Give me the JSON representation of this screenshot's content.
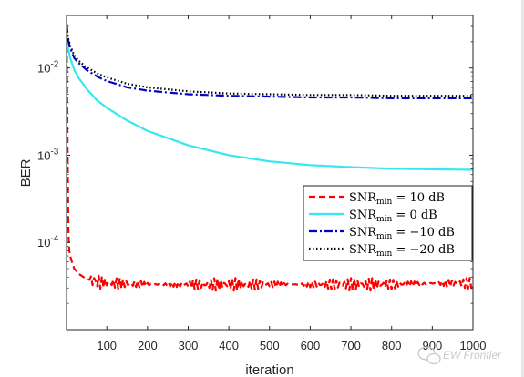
{
  "chart_data": {
    "type": "line",
    "xlabel": "iteration",
    "ylabel": "BER",
    "xlim": [
      1,
      1000
    ],
    "ylim": [
      1e-05,
      0.04
    ],
    "yscale": "log",
    "grid": false,
    "legend_position": "bottom-right",
    "x_ticks": [
      "100",
      "200",
      "300",
      "400",
      "500",
      "600",
      "700",
      "800",
      "900",
      "1000"
    ],
    "y_ticks": [
      {
        "value": 0.01,
        "base": "10",
        "exp": "-2"
      },
      {
        "value": 0.001,
        "base": "10",
        "exp": "-3"
      },
      {
        "value": 0.0001,
        "base": "10",
        "exp": "-4"
      }
    ],
    "series": [
      {
        "legend": {
          "lhs": "SNR",
          "sub": "min",
          "rhs": "= 10 dB"
        },
        "color": "#ff0000",
        "dash": "dash",
        "x": [
          1,
          2,
          3,
          4,
          5,
          6,
          8,
          10,
          15,
          20,
          30,
          50,
          80,
          120,
          200,
          300,
          400,
          500,
          600,
          700,
          800,
          900,
          1000
        ],
        "y": [
          0.03,
          0.012,
          0.003,
          0.0008,
          0.00025,
          0.00012,
          8e-05,
          7e-05,
          5.8e-05,
          5e-05,
          4.4e-05,
          3.8e-05,
          3.5e-05,
          3.4e-05,
          3.3e-05,
          3.3e-05,
          3.3e-05,
          3.3e-05,
          3.3e-05,
          3.3e-05,
          3.3e-05,
          3.4e-05,
          3.4e-05
        ]
      },
      {
        "legend": {
          "lhs": "SNR",
          "sub": "min",
          "rhs": "= 0 dB"
        },
        "color": "#33e8f0",
        "dash": "solid",
        "x": [
          1,
          5,
          10,
          20,
          30,
          50,
          75,
          100,
          150,
          200,
          300,
          400,
          500,
          600,
          700,
          800,
          900,
          1000
        ],
        "y": [
          0.03,
          0.017,
          0.013,
          0.0095,
          0.0078,
          0.0058,
          0.0043,
          0.0035,
          0.0025,
          0.0019,
          0.0013,
          0.001,
          0.00085,
          0.00077,
          0.00073,
          0.0007,
          0.00069,
          0.00068
        ]
      },
      {
        "legend": {
          "lhs": "SNR",
          "sub": "min",
          "rhs": "= −10 dB"
        },
        "color": "#0000cc",
        "dash": "dashdot",
        "x": [
          1,
          5,
          10,
          20,
          30,
          50,
          80,
          100,
          150,
          200,
          300,
          400,
          500,
          600,
          700,
          800,
          900,
          1000
        ],
        "y": [
          0.032,
          0.021,
          0.017,
          0.013,
          0.0115,
          0.0095,
          0.0078,
          0.0071,
          0.006,
          0.0055,
          0.005,
          0.0048,
          0.0047,
          0.0046,
          0.0046,
          0.0045,
          0.0045,
          0.0045
        ]
      },
      {
        "legend": {
          "lhs": "SNR",
          "sub": "min",
          "rhs": "= −20 dB"
        },
        "color": "#000000",
        "dash": "dot",
        "x": [
          1,
          5,
          10,
          20,
          30,
          50,
          80,
          100,
          150,
          200,
          300,
          400,
          500,
          600,
          700,
          800,
          900,
          1000
        ],
        "y": [
          0.032,
          0.022,
          0.018,
          0.014,
          0.0122,
          0.0102,
          0.0085,
          0.0078,
          0.0066,
          0.006,
          0.0054,
          0.0051,
          0.005,
          0.0049,
          0.0049,
          0.0048,
          0.0048,
          0.0048
        ]
      }
    ]
  },
  "watermark": "EW Frontier"
}
